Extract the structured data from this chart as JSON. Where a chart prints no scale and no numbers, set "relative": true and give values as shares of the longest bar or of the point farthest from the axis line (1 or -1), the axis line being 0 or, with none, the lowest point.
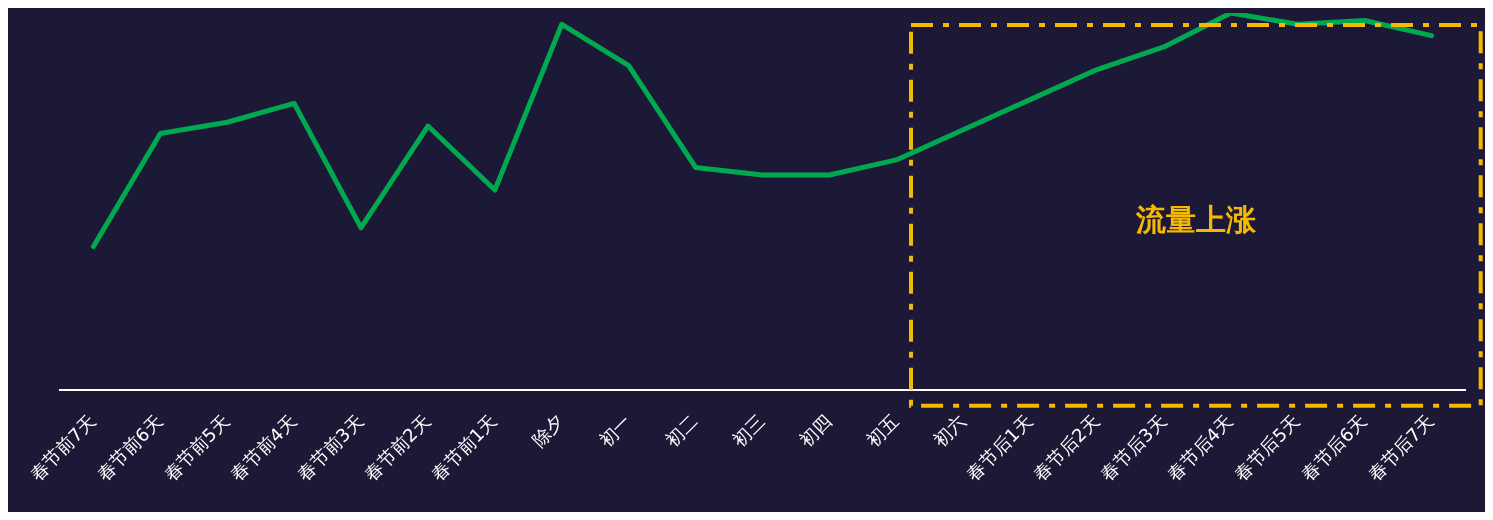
{
  "chart_data": {
    "type": "line",
    "relative": true,
    "categories": [
      "春节前7天",
      "春节前6天",
      "春节前5天",
      "春节前4天",
      "春节前3天",
      "春节前2天",
      "春节前1天",
      "除夕",
      "初一",
      "初二",
      "初三",
      "初四",
      "初五",
      "初六",
      "春节后1天",
      "春节后2天",
      "春节后3天",
      "春节后4天",
      "春节后5天",
      "春节后6天",
      "春节后7天"
    ],
    "series": [
      {
        "color": "#00a94f",
        "values": [
          0.38,
          0.68,
          0.71,
          0.76,
          0.43,
          0.7,
          0.53,
          0.97,
          0.86,
          0.59,
          0.57,
          0.57,
          0.61,
          0.69,
          0.77,
          0.85,
          0.91,
          1,
          0.97,
          0.98,
          0.94
        ]
      }
    ],
    "annotations": [
      "流量上涨"
    ],
    "grid": false,
    "legend": false,
    "marker": "none",
    "line_style": "solid"
  }
}
